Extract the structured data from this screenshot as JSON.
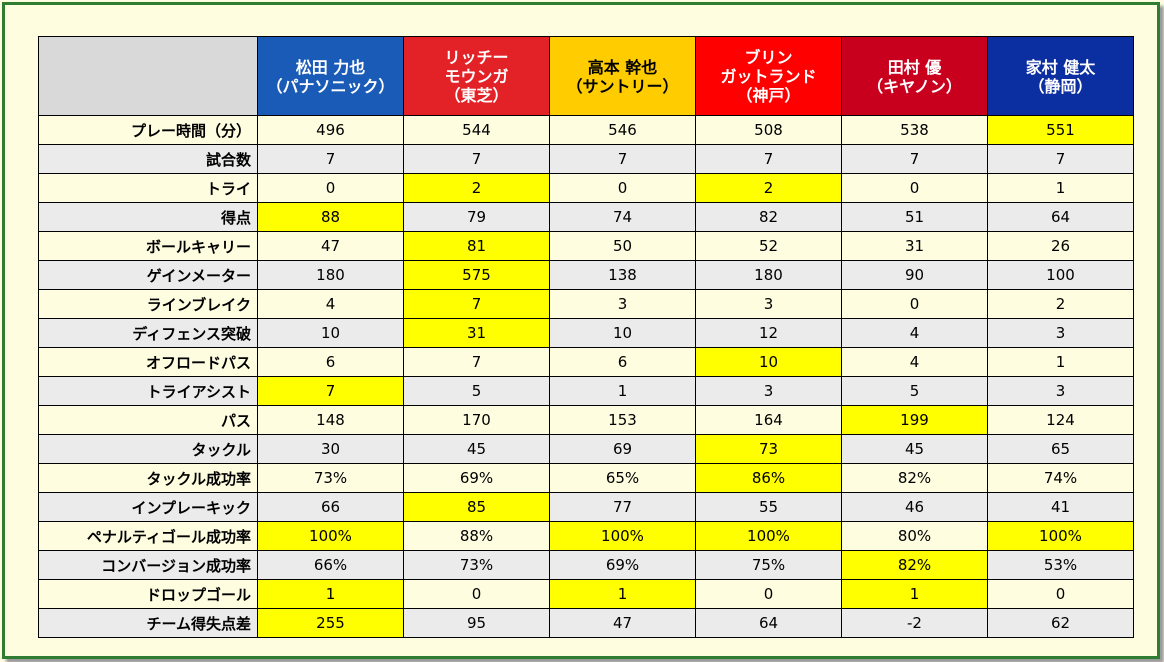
{
  "players": [
    {
      "name": "松田 力也",
      "team": "（パナソニック）",
      "color": "#1a5bb8"
    },
    {
      "name": "リッチー\nモウンガ",
      "team": "（東芝）",
      "color": "#e32227"
    },
    {
      "name": "高本 幹也",
      "team": "（サントリー）",
      "color": "#ffcc00",
      "text_color": "#000000"
    },
    {
      "name": "ブリン\nガットランド",
      "team": "（神戸）",
      "color": "#ff0000"
    },
    {
      "name": "田村 優",
      "team": "（キヤノン）",
      "color": "#c8001e"
    },
    {
      "name": "家村 健太",
      "team": "（静岡）",
      "color": "#0b2ea0"
    }
  ],
  "rows": [
    {
      "label": "プレー時間（分）",
      "values": [
        "496",
        "544",
        "546",
        "508",
        "538",
        "551"
      ],
      "highlight": [
        5
      ]
    },
    {
      "label": "試合数",
      "values": [
        "7",
        "7",
        "7",
        "7",
        "7",
        "7"
      ],
      "highlight": []
    },
    {
      "label": "トライ",
      "values": [
        "0",
        "2",
        "0",
        "2",
        "0",
        "1"
      ],
      "highlight": [
        1,
        3
      ]
    },
    {
      "label": "得点",
      "values": [
        "88",
        "79",
        "74",
        "82",
        "51",
        "64"
      ],
      "highlight": [
        0
      ]
    },
    {
      "label": "ボールキャリー",
      "values": [
        "47",
        "81",
        "50",
        "52",
        "31",
        "26"
      ],
      "highlight": [
        1
      ]
    },
    {
      "label": "ゲインメーター",
      "values": [
        "180",
        "575",
        "138",
        "180",
        "90",
        "100"
      ],
      "highlight": [
        1
      ]
    },
    {
      "label": "ラインブレイク",
      "values": [
        "4",
        "7",
        "3",
        "3",
        "0",
        "2"
      ],
      "highlight": [
        1
      ]
    },
    {
      "label": "ディフェンス突破",
      "values": [
        "10",
        "31",
        "10",
        "12",
        "4",
        "3"
      ],
      "highlight": [
        1
      ]
    },
    {
      "label": "オフロードパス",
      "values": [
        "6",
        "7",
        "6",
        "10",
        "4",
        "1"
      ],
      "highlight": [
        3
      ]
    },
    {
      "label": "トライアシスト",
      "values": [
        "7",
        "5",
        "1",
        "3",
        "5",
        "3"
      ],
      "highlight": [
        0
      ]
    },
    {
      "label": "パス",
      "values": [
        "148",
        "170",
        "153",
        "164",
        "199",
        "124"
      ],
      "highlight": [
        4
      ]
    },
    {
      "label": "タックル",
      "values": [
        "30",
        "45",
        "69",
        "73",
        "45",
        "65"
      ],
      "highlight": [
        3
      ]
    },
    {
      "label": "タックル成功率",
      "values": [
        "73%",
        "69%",
        "65%",
        "86%",
        "82%",
        "74%"
      ],
      "highlight": [
        3
      ]
    },
    {
      "label": "インプレーキック",
      "values": [
        "66",
        "85",
        "77",
        "55",
        "46",
        "41"
      ],
      "highlight": [
        1
      ]
    },
    {
      "label": "ペナルティゴール成功率",
      "values": [
        "100%",
        "88%",
        "100%",
        "100%",
        "80%",
        "100%"
      ],
      "highlight": [
        0,
        2,
        3,
        5
      ]
    },
    {
      "label": "コンバージョン成功率",
      "values": [
        "66%",
        "73%",
        "69%",
        "75%",
        "82%",
        "53%"
      ],
      "highlight": [
        4
      ]
    },
    {
      "label": "ドロップゴール",
      "values": [
        "1",
        "0",
        "1",
        "0",
        "1",
        "0"
      ],
      "highlight": [
        0,
        2,
        4
      ]
    },
    {
      "label": "チーム得失点差",
      "values": [
        "255",
        "95",
        "47",
        "64",
        "-2",
        "62"
      ],
      "highlight": [
        0
      ]
    }
  ],
  "colors": {
    "highlight": "#ffff00",
    "row_shade": "#ebebeb",
    "frame_border": "#2e7d32",
    "page_bg": "#fefde0",
    "corner_bg": "#d9d9d9"
  }
}
